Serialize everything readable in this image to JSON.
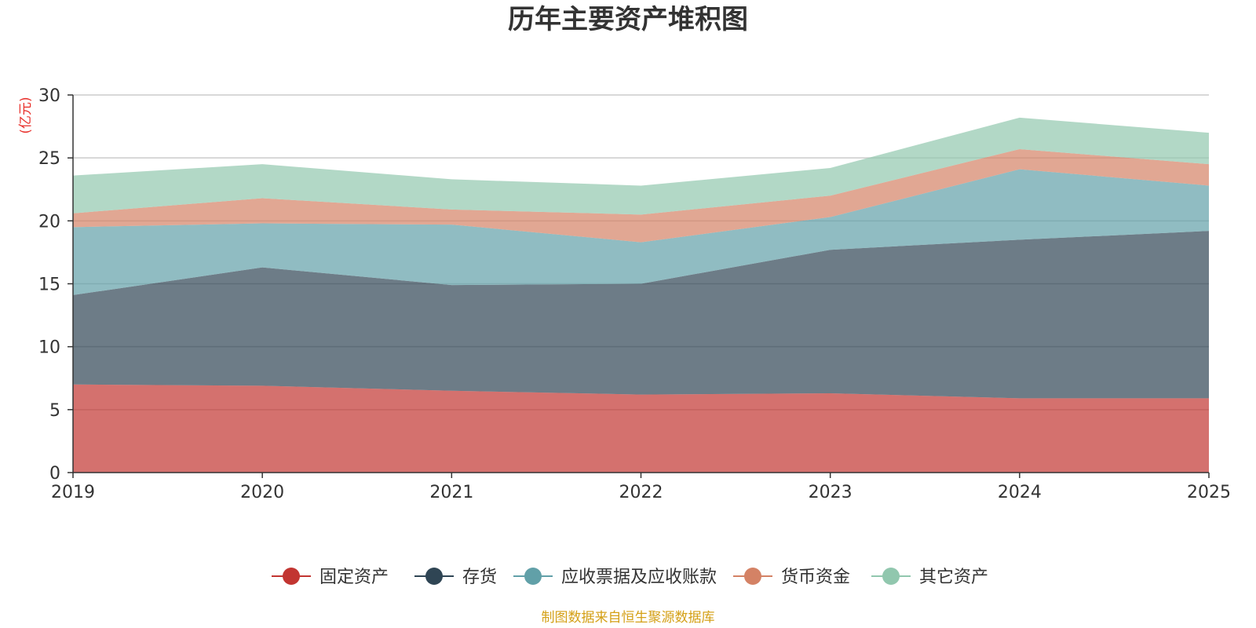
{
  "chart_data": {
    "type": "area",
    "stacked": true,
    "title": "历年主要资产堆积图",
    "ylabel": "(亿元)",
    "xlabel": "",
    "categories": [
      "2019",
      "2020",
      "2021",
      "2022",
      "2023",
      "2024",
      "2025"
    ],
    "ylim": [
      0,
      30
    ],
    "yticks": [
      0,
      5,
      10,
      15,
      20,
      25,
      30
    ],
    "grid": true,
    "legend_position": "bottom",
    "series": [
      {
        "name": "固定资产",
        "color": "#c23531",
        "values": [
          7.0,
          6.9,
          6.5,
          6.2,
          6.3,
          5.9,
          5.9
        ]
      },
      {
        "name": "存货",
        "color": "#2f4554",
        "values": [
          7.1,
          9.4,
          8.4,
          8.8,
          11.4,
          12.6,
          13.3
        ]
      },
      {
        "name": "应收票据及应收账款",
        "color": "#61a0a8",
        "values": [
          5.4,
          3.5,
          4.8,
          3.3,
          2.6,
          5.6,
          3.6
        ]
      },
      {
        "name": "货币资金",
        "color": "#d48265",
        "values": [
          1.1,
          2.0,
          1.2,
          2.2,
          1.7,
          1.6,
          1.7
        ]
      },
      {
        "name": "其它资产",
        "color": "#91c7ae",
        "values": [
          3.0,
          2.7,
          2.4,
          2.3,
          2.2,
          2.5,
          2.5
        ]
      }
    ],
    "source": "制图数据来自恒生聚源数据库"
  }
}
